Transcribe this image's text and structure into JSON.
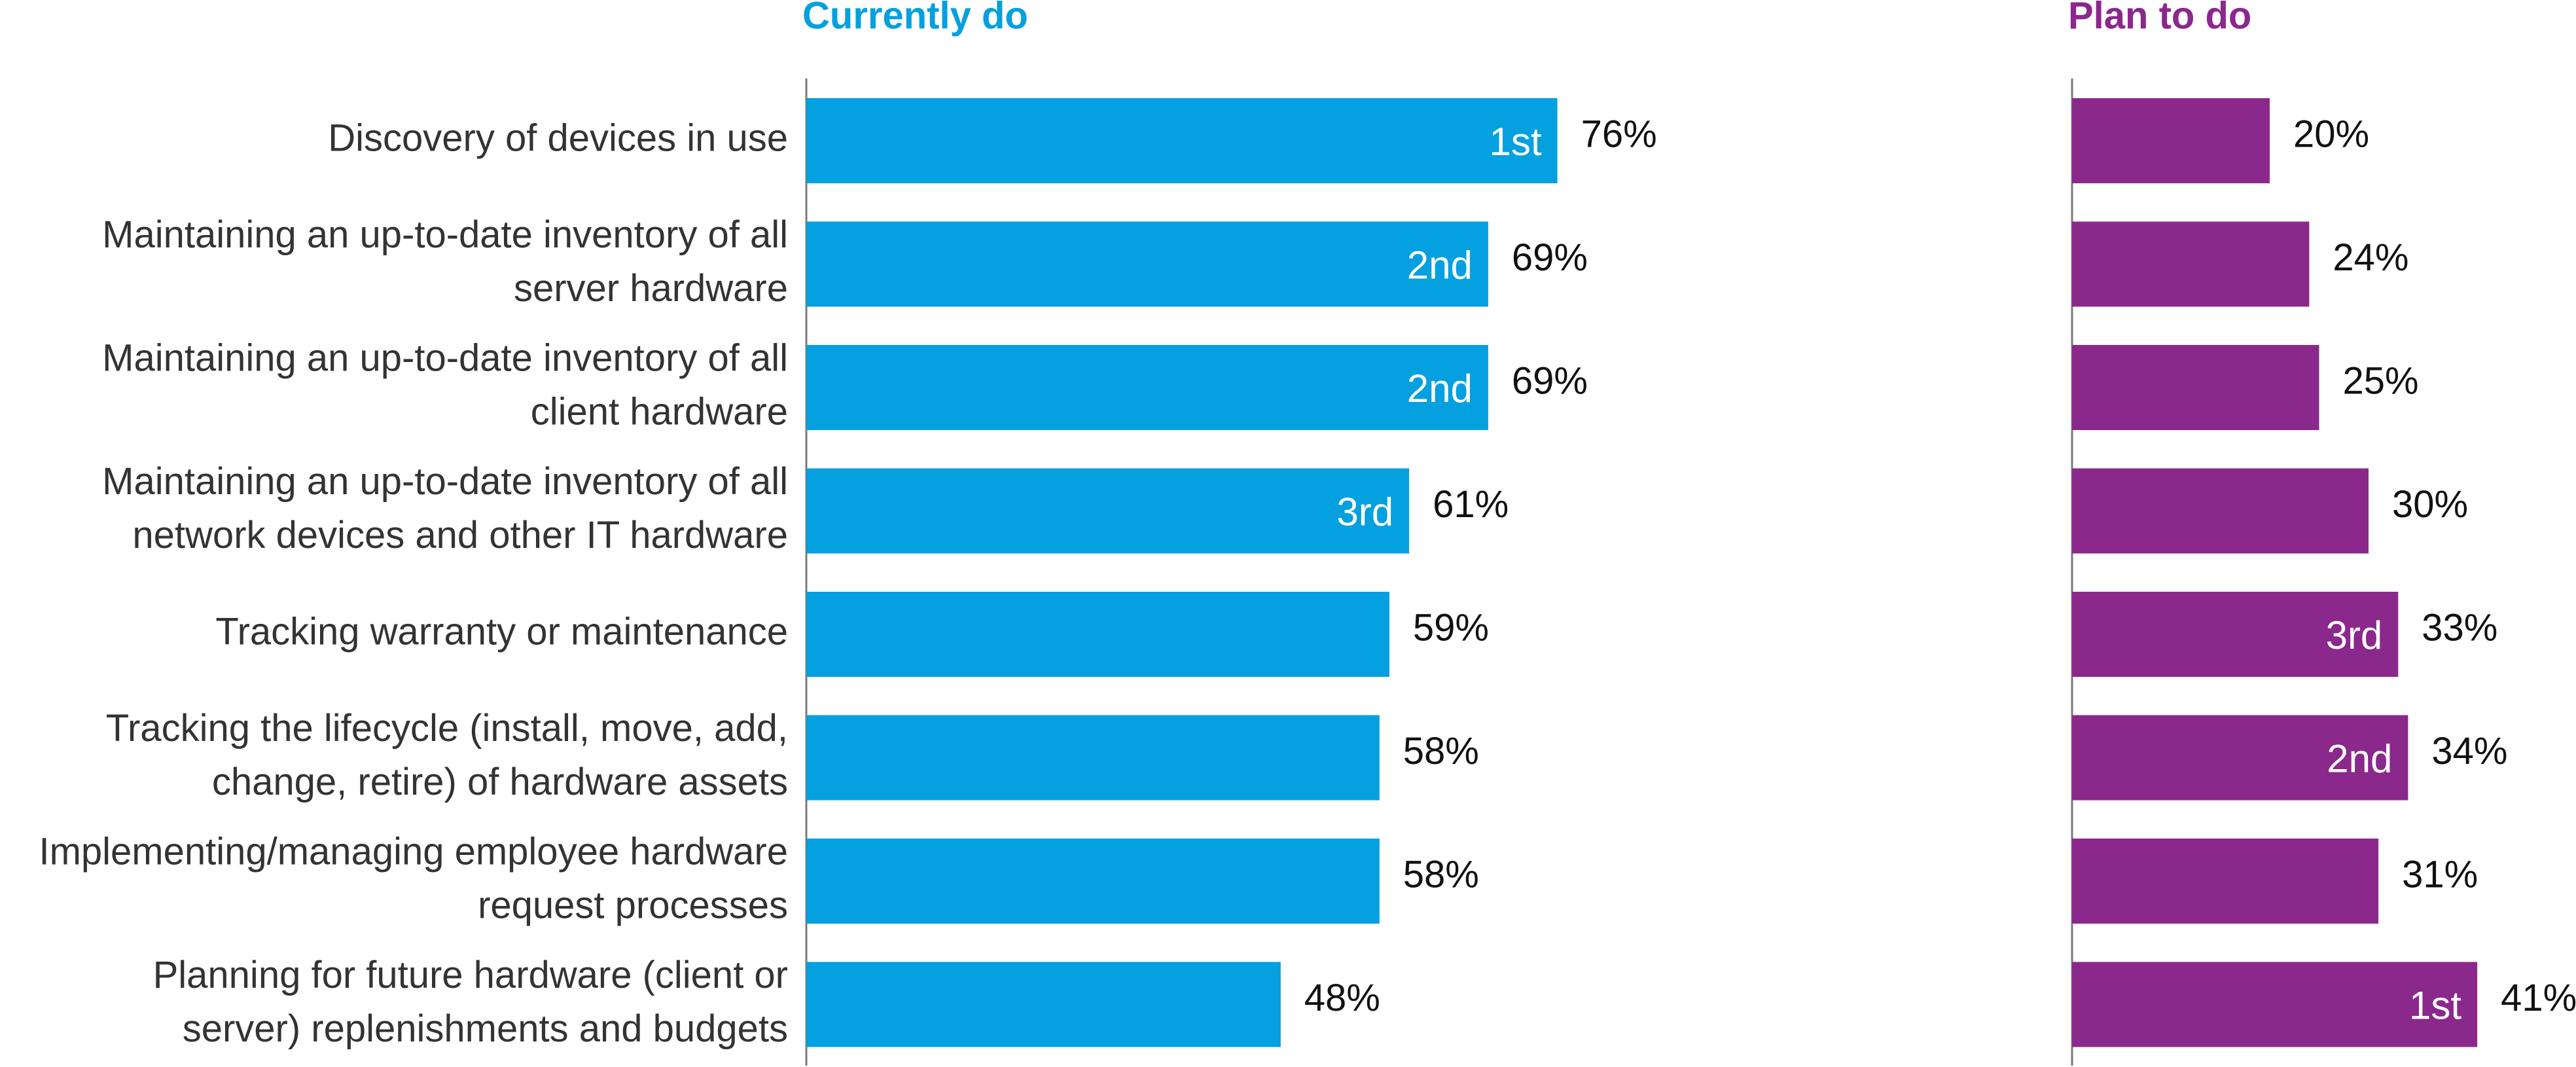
{
  "chart_data": {
    "type": "bar",
    "orientation": "horizontal",
    "categories": [
      [
        "Discovery of devices in use"
      ],
      [
        "Maintaining an up-to-date inventory of all",
        "server hardware"
      ],
      [
        "Maintaining an up-to-date inventory of all",
        "client hardware"
      ],
      [
        "Maintaining an up-to-date inventory of all",
        "network devices and other IT hardware"
      ],
      [
        "Tracking warranty or maintenance"
      ],
      [
        "Tracking the lifecycle (install, move, add,",
        "change, retire) of hardware assets"
      ],
      [
        "Implementing/managing employee hardware",
        "request processes"
      ],
      [
        "Planning for future hardware (client or",
        "server) replenishments and budgets"
      ]
    ],
    "series": [
      {
        "name": "Currently do",
        "color": "#04a0df",
        "values": [
          76,
          69,
          69,
          61,
          59,
          58,
          58,
          48
        ],
        "value_labels": [
          "76%",
          "69%",
          "69%",
          "61%",
          "59%",
          "58%",
          "58%",
          "48%"
        ],
        "rank_labels": [
          "1st",
          "2nd",
          "2nd",
          "3rd",
          "",
          "",
          "",
          ""
        ]
      },
      {
        "name": "Plan to do",
        "color": "#8b288c",
        "values": [
          20,
          24,
          25,
          30,
          33,
          34,
          31,
          41
        ],
        "value_labels": [
          "20%",
          "24%",
          "25%",
          "30%",
          "33%",
          "34%",
          "31%",
          "41%"
        ],
        "rank_labels": [
          "",
          "",
          "",
          "",
          "3rd",
          "2nd",
          "",
          "1st"
        ]
      }
    ],
    "xlim": [
      0,
      100
    ],
    "grid": false,
    "legend": "none"
  }
}
